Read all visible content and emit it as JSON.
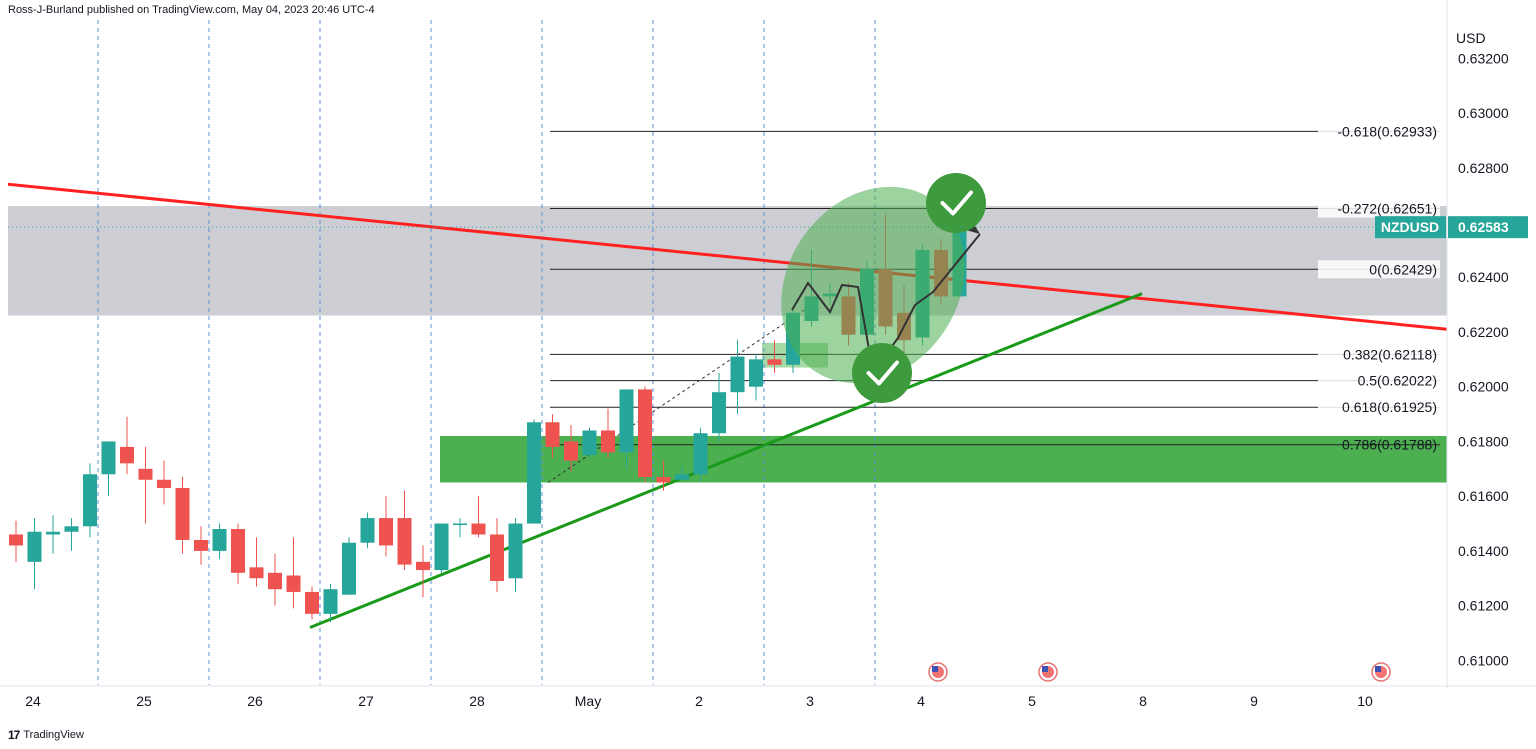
{
  "header": {
    "published": "Ross-J-Burland published on TradingView.com, May 04, 2023 20:46 UTC-4"
  },
  "footer": {
    "logo_mark": "17",
    "brand": "TradingView"
  },
  "colors": {
    "bull": "#26a69a",
    "bear": "#ef5350",
    "resistance_line": "#ff2020",
    "support_line": "#1a9a1a",
    "grey_zone": "#c9cbd1",
    "green_zone": "#4caf50",
    "vline": "#5b8fd6",
    "check": "#3d9a3d"
  },
  "chart_data": {
    "type": "candlestick",
    "symbol": "NZDUSD",
    "currency": "USD",
    "last_price": "0.62583",
    "ylim": [
      0.6091,
      0.6334
    ],
    "y_ticks": [
      "0.63200",
      "0.63000",
      "0.62800",
      "0.62400",
      "0.62200",
      "0.62000",
      "0.61800",
      "0.61600",
      "0.61400",
      "0.61200",
      "0.61000"
    ],
    "y_tick_values": [
      0.632,
      0.63,
      0.628,
      0.624,
      0.622,
      0.62,
      0.618,
      0.616,
      0.614,
      0.612,
      0.61
    ],
    "x_ticks": [
      "24",
      "25",
      "26",
      "27",
      "28",
      "May",
      "2",
      "3",
      "4",
      "5",
      "8",
      "9",
      "10"
    ],
    "session_separators": 8,
    "candles": [
      [
        0.6146,
        0.6151,
        0.6136,
        0.6142
      ],
      [
        0.6136,
        0.6152,
        0.6126,
        0.6147
      ],
      [
        0.6146,
        0.6153,
        0.6139,
        0.6147
      ],
      [
        0.6147,
        0.6152,
        0.614,
        0.6149
      ],
      [
        0.6149,
        0.6172,
        0.6145,
        0.6168
      ],
      [
        0.6168,
        0.618,
        0.616,
        0.618
      ],
      [
        0.6178,
        0.6189,
        0.6168,
        0.6172
      ],
      [
        0.617,
        0.6178,
        0.615,
        0.6166
      ],
      [
        0.6166,
        0.6173,
        0.6157,
        0.6163
      ],
      [
        0.6163,
        0.6167,
        0.6139,
        0.6144
      ],
      [
        0.6144,
        0.6149,
        0.6135,
        0.614
      ],
      [
        0.614,
        0.615,
        0.6137,
        0.6148
      ],
      [
        0.6148,
        0.615,
        0.6128,
        0.6132
      ],
      [
        0.6134,
        0.6145,
        0.6127,
        0.613
      ],
      [
        0.6132,
        0.6139,
        0.612,
        0.6126
      ],
      [
        0.6131,
        0.6145,
        0.6119,
        0.6125
      ],
      [
        0.6125,
        0.6127,
        0.6115,
        0.6117
      ],
      [
        0.6117,
        0.6128,
        0.6114,
        0.6126
      ],
      [
        0.6124,
        0.6145,
        0.6124,
        0.6143
      ],
      [
        0.6143,
        0.6154,
        0.6141,
        0.6152
      ],
      [
        0.6152,
        0.616,
        0.6138,
        0.6142
      ],
      [
        0.6152,
        0.6162,
        0.6133,
        0.6135
      ],
      [
        0.6136,
        0.6142,
        0.6123,
        0.6133
      ],
      [
        0.6133,
        0.615,
        0.6132,
        0.615
      ],
      [
        0.615,
        0.6152,
        0.6145,
        0.615
      ],
      [
        0.615,
        0.616,
        0.6145,
        0.6146
      ],
      [
        0.6146,
        0.6152,
        0.6125,
        0.6129
      ],
      [
        0.613,
        0.6152,
        0.6125,
        0.615
      ],
      [
        0.615,
        0.6188,
        0.615,
        0.6187
      ],
      [
        0.6187,
        0.619,
        0.6174,
        0.6178
      ],
      [
        0.618,
        0.6186,
        0.6169,
        0.6173
      ],
      [
        0.6175,
        0.6185,
        0.6174,
        0.6184
      ],
      [
        0.6184,
        0.6192,
        0.6174,
        0.6176
      ],
      [
        0.6176,
        0.6199,
        0.617,
        0.6199
      ],
      [
        0.6199,
        0.62,
        0.6165,
        0.6167
      ],
      [
        0.6167,
        0.6173,
        0.6162,
        0.6165
      ],
      [
        0.6166,
        0.6171,
        0.6167,
        0.6168
      ],
      [
        0.6168,
        0.6185,
        0.6165,
        0.6183
      ],
      [
        0.6183,
        0.6205,
        0.618,
        0.6198
      ],
      [
        0.6198,
        0.6217,
        0.619,
        0.6211
      ],
      [
        0.62,
        0.6212,
        0.6195,
        0.621
      ],
      [
        0.621,
        0.6217,
        0.6205,
        0.6208
      ],
      [
        0.6208,
        0.6229,
        0.6205,
        0.6227
      ],
      [
        0.6224,
        0.625,
        0.6222,
        0.6233
      ],
      [
        0.6233,
        0.6238,
        0.623,
        0.6234
      ],
      [
        0.6233,
        0.6238,
        0.6215,
        0.6219
      ],
      [
        0.6219,
        0.6246,
        0.6217,
        0.6243
      ],
      [
        0.6243,
        0.6263,
        0.6219,
        0.6222
      ],
      [
        0.6227,
        0.6237,
        0.6205,
        0.6217
      ],
      [
        0.6218,
        0.6252,
        0.6215,
        0.625
      ],
      [
        0.625,
        0.6254,
        0.623,
        0.6233
      ],
      [
        0.6233,
        0.6259,
        0.6233,
        0.6258
      ]
    ],
    "fibonacci": [
      {
        "label": "-0.618(0.62933)",
        "price": 0.62933
      },
      {
        "label": "-0.272(0.62651)",
        "price": 0.62651
      },
      {
        "label": "0(0.62429)",
        "price": 0.62429
      },
      {
        "label": "0.382(0.62118)",
        "price": 0.62118
      },
      {
        "label": "0.5(0.62022)",
        "price": 0.62022
      },
      {
        "label": "0.618(0.61925)",
        "price": 0.61925
      },
      {
        "label": "0.786(0.61788)",
        "price": 0.61788
      }
    ],
    "zones": [
      {
        "name": "grey-resistance-zone",
        "top": 0.6266,
        "bottom": 0.6226
      },
      {
        "name": "green-support-zone",
        "top": 0.6182,
        "bottom": 0.6165
      }
    ],
    "trendlines": [
      {
        "name": "descending-resistance",
        "from": [
          0,
          0.6274
        ],
        "to": [
          60,
          0.6221
        ]
      },
      {
        "name": "ascending-support",
        "from": [
          16.5,
          0.6112
        ],
        "to": [
          58.5,
          0.6234
        ]
      }
    ],
    "grid": false,
    "legend": "none"
  }
}
